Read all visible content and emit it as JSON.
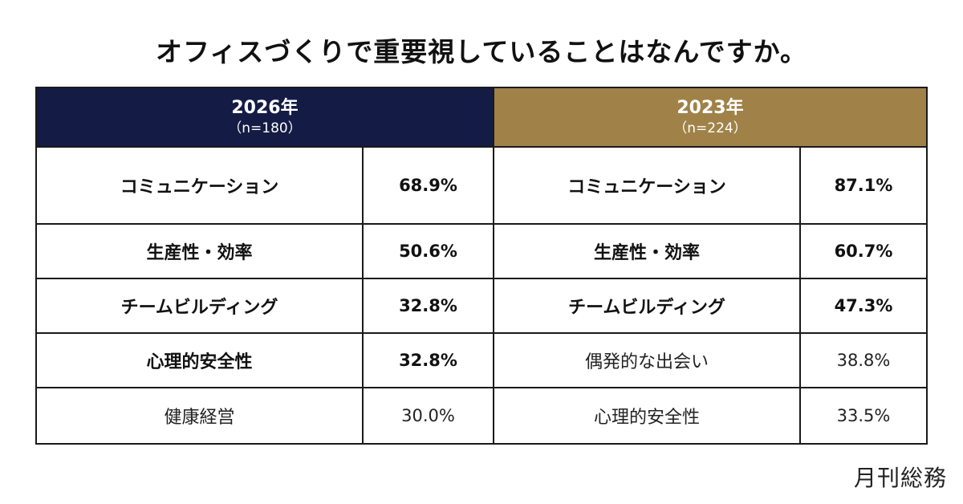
{
  "title": "オフィスづくりで重要視していることはなんですか。",
  "brand": "月刊総務",
  "colors": {
    "left_header": "#141c45",
    "right_header": "#a08248"
  },
  "chart_data": {
    "type": "table",
    "title": "オフィスづくりで重要視していることはなんですか。",
    "groups": [
      {
        "year": "2026年",
        "n": "（n=180）",
        "rows": [
          {
            "label": "コミュニケーション",
            "value": "68.9%",
            "bold": true
          },
          {
            "label": "生産性・効率",
            "value": "50.6%",
            "bold": true
          },
          {
            "label": "チームビルディング",
            "value": "32.8%",
            "bold": true
          },
          {
            "label": "心理的安全性",
            "value": "32.8%",
            "bold": true
          },
          {
            "label": "健康経営",
            "value": "30.0%",
            "bold": false
          }
        ]
      },
      {
        "year": "2023年",
        "n": "（n=224）",
        "rows": [
          {
            "label": "コミュニケーション",
            "value": "87.1%",
            "bold": true
          },
          {
            "label": "生産性・効率",
            "value": "60.7%",
            "bold": true
          },
          {
            "label": "チームビルディング",
            "value": "47.3%",
            "bold": true
          },
          {
            "label": "偶発的な出会い",
            "value": "38.8%",
            "bold": false
          },
          {
            "label": "心理的安全性",
            "value": "33.5%",
            "bold": false
          }
        ]
      }
    ]
  }
}
